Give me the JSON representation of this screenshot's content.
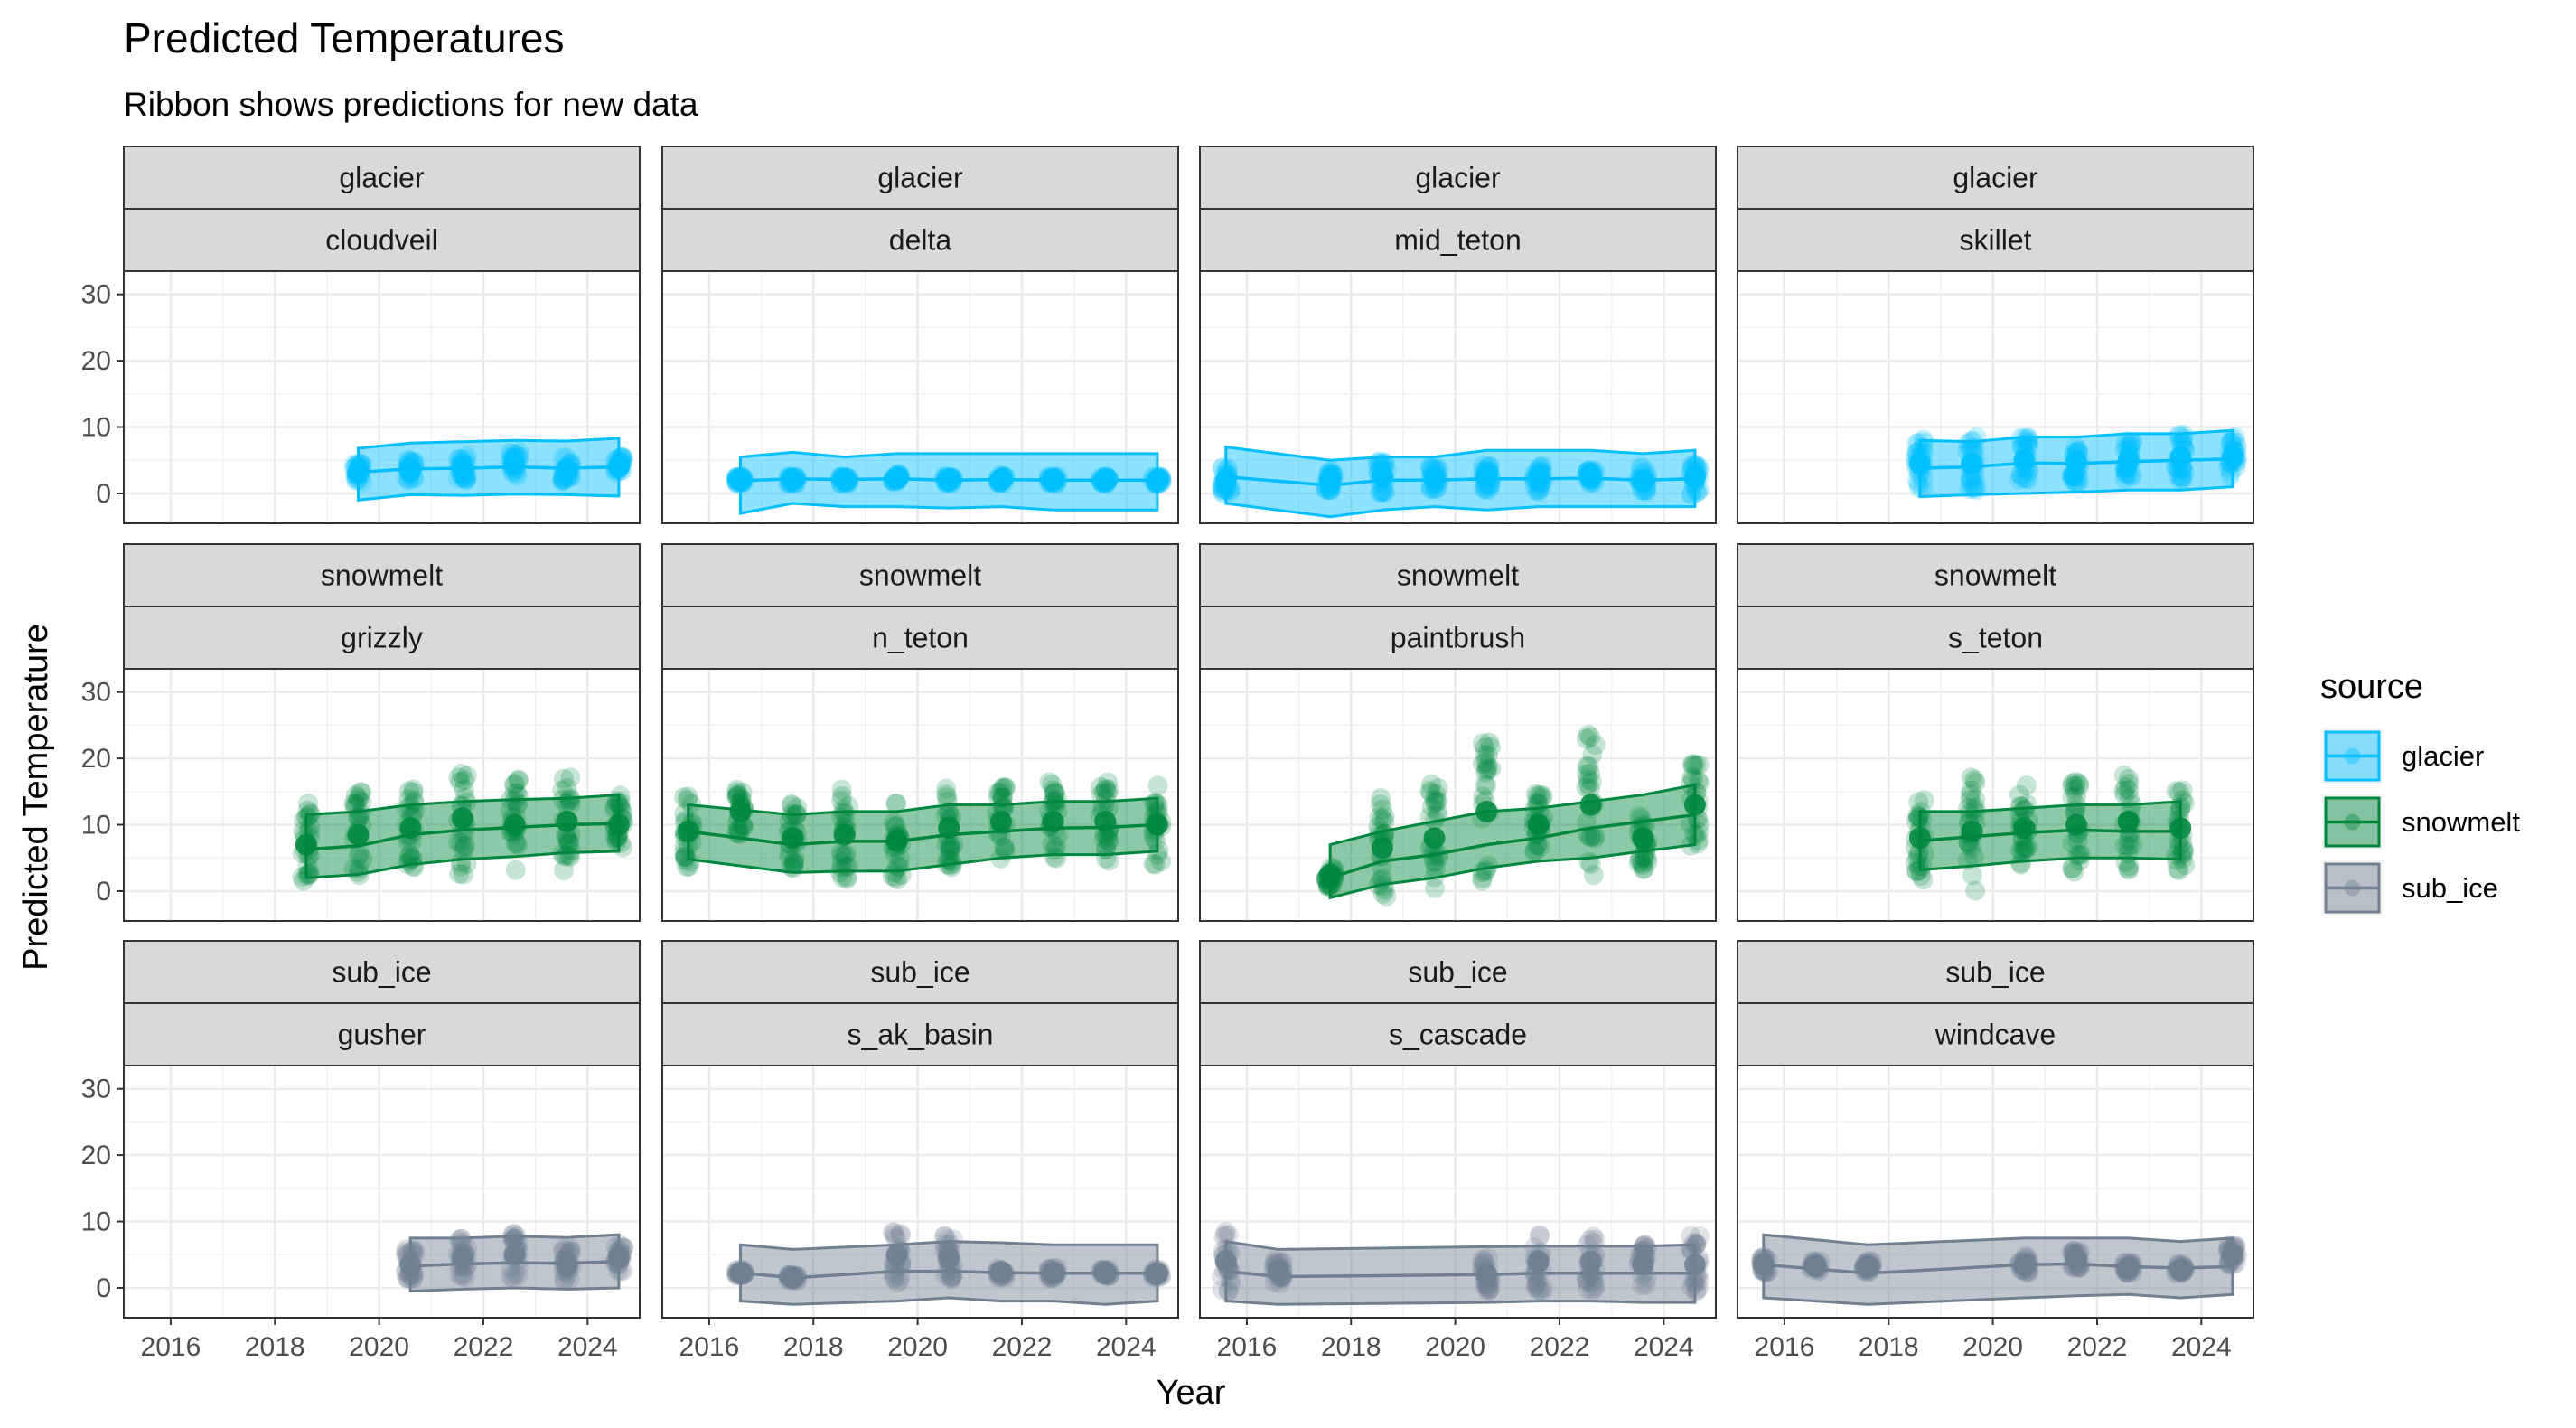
{
  "chart_data": {
    "type": "line",
    "title": "Predicted Temperatures",
    "subtitle": "Ribbon shows predictions for new data",
    "xlabel": "Year",
    "ylabel": "Predicted Temperature",
    "xlim": [
      2015.1,
      2025.0
    ],
    "ylim": [
      -4.5,
      33.5
    ],
    "x_ticks": [
      2016,
      2018,
      2020,
      2022,
      2024
    ],
    "y_ticks": [
      0,
      10,
      20,
      30
    ],
    "grid": true,
    "legend": {
      "title": "source",
      "position": "right",
      "entries": [
        "glacier",
        "snowmelt",
        "sub_ice"
      ]
    },
    "colors": {
      "glacier": "#00bfff",
      "snowmelt": "#00873e",
      "sub_ice": "#708090"
    },
    "panels": [
      {
        "source": "glacier",
        "site": "cloudveil",
        "years": [
          2019.6,
          2020.6,
          2021.6,
          2022.6,
          2023.6,
          2024.6
        ],
        "fit": [
          3.2,
          3.7,
          3.8,
          4.0,
          3.8,
          4.0
        ],
        "lower": [
          -1.0,
          -0.2,
          -0.3,
          -0.1,
          -0.2,
          -0.4
        ],
        "upper": [
          6.8,
          7.6,
          7.8,
          8.0,
          7.9,
          8.3
        ],
        "points": [
          [
            2019.6,
            3.2,
            1.5
          ],
          [
            2020.6,
            3.5,
            1.6
          ],
          [
            2021.6,
            3.8,
            1.8
          ],
          [
            2022.6,
            4.3,
            2.0
          ],
          [
            2023.6,
            3.6,
            1.8
          ],
          [
            2024.6,
            4.0,
            1.6
          ]
        ]
      },
      {
        "source": "glacier",
        "site": "delta",
        "years": [
          2016.6,
          2017.6,
          2018.6,
          2019.6,
          2020.6,
          2021.6,
          2022.6,
          2023.6,
          2024.6
        ],
        "fit": [
          1.9,
          2.2,
          2.1,
          2.2,
          2.0,
          2.1,
          2.0,
          2.0,
          2.0
        ],
        "lower": [
          -3.0,
          -1.5,
          -2.0,
          -2.0,
          -2.2,
          -2.0,
          -2.5,
          -2.5,
          -2.5
        ],
        "upper": [
          5.5,
          6.2,
          5.5,
          6.0,
          6.0,
          6.0,
          6.0,
          6.0,
          6.0
        ],
        "points": [
          [
            2016.6,
            2.0,
            0.6
          ],
          [
            2017.6,
            2.0,
            0.6
          ],
          [
            2018.6,
            2.0,
            0.6
          ],
          [
            2019.6,
            2.3,
            0.7
          ],
          [
            2020.6,
            2.0,
            0.6
          ],
          [
            2021.6,
            2.1,
            0.6
          ],
          [
            2022.6,
            2.0,
            0.6
          ],
          [
            2023.6,
            2.0,
            0.6
          ],
          [
            2024.6,
            2.0,
            0.6
          ]
        ]
      },
      {
        "source": "glacier",
        "site": "mid_teton",
        "years": [
          2015.6,
          2017.6,
          2018.6,
          2019.6,
          2020.6,
          2021.6,
          2022.6,
          2023.6,
          2024.6
        ],
        "fit": [
          2.5,
          1.2,
          2.0,
          2.0,
          2.2,
          2.2,
          2.3,
          2.0,
          2.2
        ],
        "lower": [
          -1.5,
          -3.5,
          -2.5,
          -2.0,
          -2.5,
          -2.0,
          -2.0,
          -2.0,
          -2.0
        ],
        "upper": [
          7.0,
          5.0,
          5.5,
          5.5,
          6.5,
          6.5,
          6.5,
          6.0,
          6.5
        ],
        "points": [
          [
            2015.6,
            2.0,
            2.0
          ],
          [
            2017.6,
            2.0,
            1.5
          ],
          [
            2018.6,
            2.5,
            2.5
          ],
          [
            2019.6,
            2.3,
            2.0
          ],
          [
            2020.6,
            2.5,
            2.0
          ],
          [
            2021.6,
            2.3,
            2.0
          ],
          [
            2022.6,
            2.5,
            1.0
          ],
          [
            2023.6,
            2.0,
            2.0
          ],
          [
            2024.6,
            2.3,
            2.5
          ]
        ]
      },
      {
        "source": "glacier",
        "site": "skillet",
        "years": [
          2018.6,
          2019.6,
          2020.6,
          2021.6,
          2022.6,
          2023.6,
          2024.6
        ],
        "fit": [
          3.8,
          4.0,
          4.6,
          4.5,
          4.8,
          5.0,
          5.2
        ],
        "lower": [
          -0.5,
          -0.2,
          0.0,
          0.2,
          0.5,
          0.5,
          1.0
        ],
        "upper": [
          8.0,
          7.8,
          8.5,
          8.5,
          9.0,
          9.0,
          9.5
        ],
        "points": [
          [
            2018.6,
            4.5,
            4.0
          ],
          [
            2019.6,
            4.5,
            4.0
          ],
          [
            2020.6,
            5.0,
            3.5
          ],
          [
            2021.6,
            4.8,
            3.5
          ],
          [
            2022.6,
            5.0,
            3.0
          ],
          [
            2023.6,
            5.5,
            3.5
          ],
          [
            2024.6,
            5.5,
            3.5
          ]
        ]
      },
      {
        "source": "snowmelt",
        "site": "grizzly",
        "years": [
          2018.6,
          2019.6,
          2020.6,
          2021.6,
          2022.6,
          2023.6,
          2024.6
        ],
        "fit": [
          6.3,
          6.8,
          8.5,
          9.2,
          9.6,
          10.0,
          10.2
        ],
        "lower": [
          2.0,
          2.5,
          4.0,
          4.8,
          5.2,
          5.8,
          6.0
        ],
        "upper": [
          11.5,
          12.0,
          13.0,
          13.5,
          13.8,
          14.0,
          14.5
        ],
        "points": [
          [
            2018.6,
            7.0,
            6.5
          ],
          [
            2019.6,
            8.5,
            6.5
          ],
          [
            2020.6,
            9.5,
            6.0
          ],
          [
            2021.6,
            11.0,
            8.5
          ],
          [
            2022.6,
            10.0,
            7.0
          ],
          [
            2023.6,
            10.5,
            7.5
          ],
          [
            2024.6,
            10.0,
            4.5
          ]
        ]
      },
      {
        "source": "snowmelt",
        "site": "n_teton",
        "years": [
          2015.6,
          2017.6,
          2018.6,
          2019.6,
          2020.6,
          2021.6,
          2022.6,
          2023.6,
          2024.6
        ],
        "fit": [
          9.0,
          7.0,
          7.5,
          7.5,
          8.5,
          9.0,
          9.5,
          9.6,
          10.0
        ],
        "lower": [
          4.8,
          2.8,
          3.0,
          3.0,
          4.0,
          5.0,
          5.5,
          5.5,
          6.0
        ],
        "upper": [
          13.0,
          11.5,
          12.0,
          12.0,
          13.0,
          13.0,
          13.5,
          13.5,
          14.0
        ],
        "points": [
          [
            2015.6,
            9.0,
            5.5
          ],
          [
            2016.6,
            12.0,
            3.5
          ],
          [
            2017.6,
            8.0,
            5.5
          ],
          [
            2018.6,
            8.5,
            7.0
          ],
          [
            2019.6,
            7.5,
            6.0
          ],
          [
            2020.6,
            9.5,
            6.0
          ],
          [
            2021.6,
            10.5,
            6.0
          ],
          [
            2022.6,
            10.5,
            6.0
          ],
          [
            2023.6,
            10.5,
            6.0
          ],
          [
            2024.6,
            10.0,
            6.0
          ]
        ]
      },
      {
        "source": "snowmelt",
        "site": "paintbrush",
        "years": [
          2017.6,
          2018.6,
          2019.6,
          2020.6,
          2021.6,
          2022.6,
          2023.6,
          2024.6
        ],
        "fit": [
          2.0,
          4.5,
          5.5,
          7.0,
          8.0,
          9.5,
          10.5,
          11.5
        ],
        "lower": [
          -1.0,
          1.0,
          2.0,
          3.5,
          4.5,
          5.0,
          6.0,
          7.0
        ],
        "upper": [
          7.0,
          9.0,
          10.5,
          12.0,
          12.5,
          13.5,
          14.5,
          16.0
        ],
        "points": [
          [
            2017.6,
            2.5,
            2.0
          ],
          [
            2018.6,
            6.5,
            7.5
          ],
          [
            2019.6,
            8.0,
            8.5
          ],
          [
            2020.6,
            12.0,
            11.0
          ],
          [
            2021.6,
            10.0,
            5.0
          ],
          [
            2022.6,
            13.0,
            11.0
          ],
          [
            2023.6,
            8.0,
            5.0
          ],
          [
            2024.6,
            13.0,
            6.5
          ]
        ]
      },
      {
        "source": "snowmelt",
        "site": "s_teton",
        "years": [
          2018.6,
          2019.6,
          2020.6,
          2021.6,
          2022.6,
          2023.6
        ],
        "fit": [
          7.6,
          8.2,
          8.8,
          9.2,
          9.0,
          9.0
        ],
        "lower": [
          3.2,
          3.8,
          4.5,
          5.0,
          5.0,
          4.8
        ],
        "upper": [
          12.0,
          12.0,
          12.5,
          13.0,
          13.0,
          13.5
        ],
        "points": [
          [
            2018.6,
            8.0,
            6.5
          ],
          [
            2019.6,
            9.0,
            9.0
          ],
          [
            2020.6,
            9.5,
            6.5
          ],
          [
            2021.6,
            10.0,
            7.5
          ],
          [
            2022.6,
            10.5,
            7.5
          ],
          [
            2023.6,
            9.5,
            6.5
          ]
        ]
      },
      {
        "source": "sub_ice",
        "site": "gusher",
        "years": [
          2020.6,
          2021.6,
          2022.6,
          2023.6,
          2024.6
        ],
        "fit": [
          3.3,
          3.6,
          3.8,
          3.7,
          4.0
        ],
        "lower": [
          -0.5,
          -0.2,
          0.0,
          -0.2,
          0.0
        ],
        "upper": [
          7.5,
          7.5,
          7.8,
          7.6,
          8.0
        ],
        "points": [
          [
            2020.6,
            3.5,
            2.5
          ],
          [
            2021.6,
            4.5,
            3.0
          ],
          [
            2022.6,
            5.0,
            3.5
          ],
          [
            2023.6,
            3.5,
            2.5
          ],
          [
            2024.6,
            4.5,
            2.0
          ]
        ]
      },
      {
        "source": "sub_ice",
        "site": "s_ak_basin",
        "years": [
          2016.6,
          2017.6,
          2019.6,
          2020.6,
          2021.6,
          2022.6,
          2023.6,
          2024.6
        ],
        "fit": [
          2.3,
          1.5,
          2.5,
          2.5,
          2.3,
          2.2,
          2.2,
          2.2
        ],
        "lower": [
          -2.0,
          -2.5,
          -2.0,
          -1.5,
          -2.0,
          -2.0,
          -2.5,
          -2.0
        ],
        "upper": [
          6.5,
          5.8,
          6.5,
          7.0,
          6.8,
          6.5,
          6.5,
          6.5
        ],
        "points": [
          [
            2016.6,
            2.3,
            0.5
          ],
          [
            2017.6,
            1.5,
            0.5
          ],
          [
            2019.6,
            5.0,
            5.0
          ],
          [
            2020.6,
            4.5,
            3.5
          ],
          [
            2021.6,
            2.3,
            0.8
          ],
          [
            2022.6,
            2.2,
            0.8
          ],
          [
            2023.6,
            2.2,
            0.6
          ],
          [
            2024.6,
            2.2,
            0.6
          ]
        ]
      },
      {
        "source": "sub_ice",
        "site": "s_cascade",
        "years": [
          2015.6,
          2016.6,
          2020.6,
          2021.6,
          2022.6,
          2023.6,
          2024.6
        ],
        "fit": [
          2.5,
          1.7,
          2.0,
          2.2,
          2.2,
          2.2,
          2.2
        ],
        "lower": [
          -2.0,
          -2.5,
          -2.2,
          -2.0,
          -2.0,
          -2.2,
          -2.2
        ],
        "upper": [
          7.0,
          5.8,
          6.2,
          6.3,
          6.3,
          6.3,
          6.5
        ],
        "points": [
          [
            2015.6,
            4.0,
            4.5
          ],
          [
            2016.6,
            2.5,
            2.0
          ],
          [
            2020.6,
            2.0,
            2.5
          ],
          [
            2021.6,
            4.0,
            4.5
          ],
          [
            2022.6,
            4.0,
            4.5
          ],
          [
            2023.6,
            3.5,
            3.5
          ],
          [
            2024.6,
            3.5,
            4.5
          ]
        ]
      },
      {
        "source": "sub_ice",
        "site": "windcave",
        "years": [
          2015.6,
          2017.6,
          2020.6,
          2021.6,
          2022.6,
          2023.6,
          2024.6
        ],
        "fit": [
          3.5,
          2.2,
          3.5,
          3.6,
          3.2,
          3.0,
          3.2
        ],
        "lower": [
          -1.5,
          -2.5,
          -1.5,
          -1.2,
          -1.0,
          -1.5,
          -1.0
        ],
        "upper": [
          8.0,
          6.5,
          7.5,
          7.5,
          7.5,
          7.0,
          7.5
        ],
        "points": [
          [
            2015.6,
            3.5,
            1.2
          ],
          [
            2016.6,
            3.3,
            0.8
          ],
          [
            2017.6,
            3.2,
            1.0
          ],
          [
            2020.6,
            3.5,
            1.5
          ],
          [
            2021.6,
            4.3,
            1.3
          ],
          [
            2022.6,
            3.0,
            0.8
          ],
          [
            2023.6,
            2.8,
            0.8
          ],
          [
            2024.6,
            5.0,
            1.5
          ]
        ]
      }
    ]
  }
}
